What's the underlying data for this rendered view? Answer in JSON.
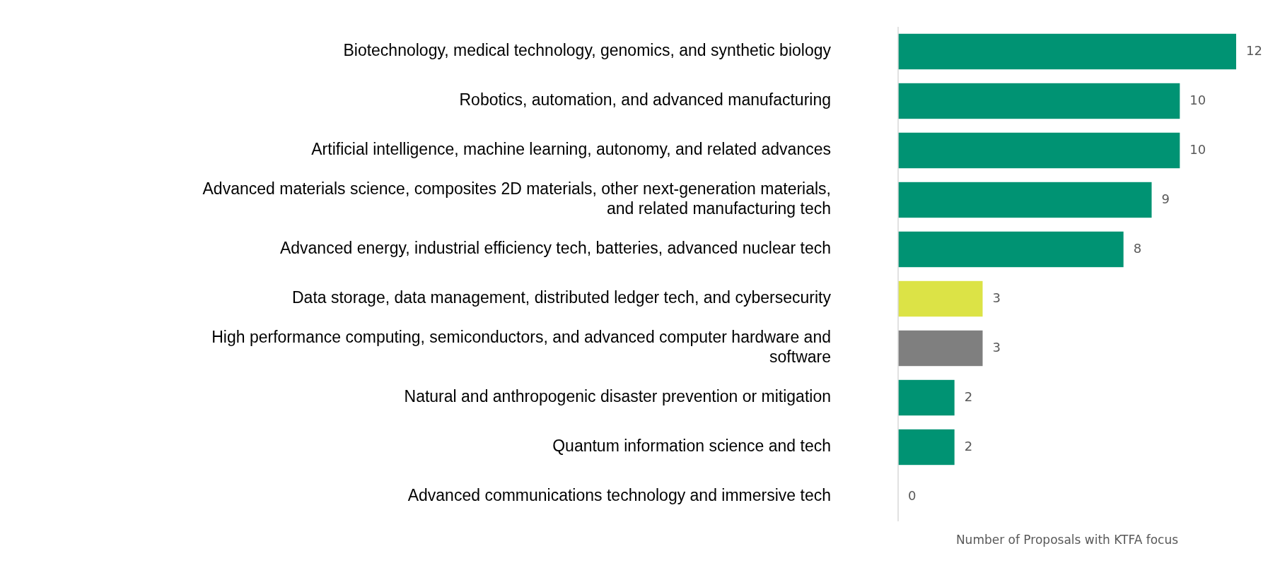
{
  "chart_data": {
    "type": "bar",
    "orientation": "horizontal",
    "xlabel": "Number of Proposals with KTFA focus",
    "categories": [
      "Biotechnology, medical technology, genomics, and synthetic biology",
      "Robotics, automation, and advanced manufacturing",
      "Artificial intelligence, machine learning, autonomy, and related advances",
      "Advanced materials science, composites 2D materials, other next-generation materials, and related manufacturing tech",
      "Advanced energy, industrial efficiency tech, batteries, advanced nuclear tech",
      "Data storage, data management, distributed ledger tech, and cybersecurity",
      "High performance computing, semiconductors, and advanced computer hardware and software",
      "Natural and anthropogenic disaster prevention or mitigation",
      "Quantum information science and tech",
      "Advanced communications technology and immersive tech"
    ],
    "values": [
      12,
      10,
      10,
      9,
      8,
      3,
      3,
      2,
      2,
      0
    ],
    "colors": [
      "#009373",
      "#009373",
      "#009373",
      "#009373",
      "#009373",
      "#dce346",
      "#7f7f7f",
      "#009373",
      "#009373",
      "#009373"
    ],
    "data_labels": true
  }
}
